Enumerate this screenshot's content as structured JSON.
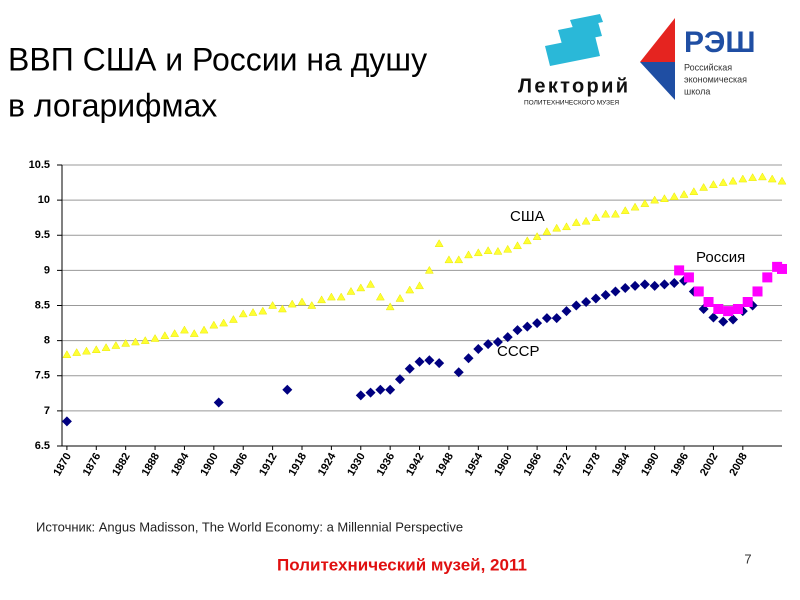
{
  "header": {
    "title_lines": [
      "ВВП США и России на душу",
      "в логарифмах"
    ]
  },
  "logos": {
    "lektoriy": {
      "name": "Лекторий",
      "sub": "ПОЛИТЕХНИЧЕСКОГО МУЗЕЯ"
    },
    "nes": {
      "name": "РЭШ",
      "lines": [
        "Российская",
        "экономическая",
        "школа"
      ]
    }
  },
  "chart_data": {
    "type": "scatter",
    "xlim": [
      1869,
      2016
    ],
    "xticks": [
      1870,
      1876,
      1882,
      1888,
      1894,
      1900,
      1906,
      1912,
      1918,
      1924,
      1930,
      1936,
      1942,
      1948,
      1954,
      1960,
      1966,
      1972,
      1978,
      1984,
      1990,
      1996,
      2002,
      2008
    ],
    "ylim": [
      6.5,
      10.5
    ],
    "yticks": [
      6.5,
      7,
      7.5,
      8,
      8.5,
      9,
      9.5,
      10,
      10.5
    ],
    "grid": true,
    "series": [
      {
        "name": "США",
        "color": "#ffff33",
        "marker": "triangle",
        "x": [
          1870,
          1872,
          1874,
          1876,
          1878,
          1880,
          1882,
          1884,
          1886,
          1888,
          1890,
          1892,
          1894,
          1896,
          1898,
          1900,
          1902,
          1904,
          1906,
          1908,
          1910,
          1912,
          1914,
          1916,
          1918,
          1920,
          1922,
          1924,
          1926,
          1928,
          1930,
          1932,
          1934,
          1936,
          1938,
          1940,
          1942,
          1944,
          1946,
          1948,
          1950,
          1952,
          1954,
          1956,
          1958,
          1960,
          1962,
          1964,
          1966,
          1968,
          1970,
          1972,
          1974,
          1976,
          1978,
          1980,
          1982,
          1984,
          1986,
          1988,
          1990,
          1992,
          1994,
          1996,
          1998,
          2000,
          2002,
          2004,
          2006,
          2008,
          2010,
          2012,
          2014,
          2016
        ],
        "values": [
          7.8,
          7.83,
          7.85,
          7.87,
          7.9,
          7.93,
          7.96,
          7.98,
          8.0,
          8.03,
          8.07,
          8.1,
          8.15,
          8.1,
          8.15,
          8.22,
          8.25,
          8.3,
          8.38,
          8.4,
          8.42,
          8.5,
          8.45,
          8.52,
          8.55,
          8.5,
          8.58,
          8.62,
          8.62,
          8.7,
          8.75,
          8.8,
          8.62,
          8.48,
          8.6,
          8.72,
          8.78,
          9.0,
          9.38,
          9.15,
          9.15,
          9.22,
          9.25,
          9.28,
          9.27,
          9.3,
          9.35,
          9.42,
          9.48,
          9.55,
          9.6,
          9.62,
          9.68,
          9.7,
          9.75,
          9.8,
          9.8,
          9.85,
          9.9,
          9.95,
          10.0,
          10.02,
          10.05,
          10.08,
          10.12,
          10.18,
          10.22,
          10.25,
          10.27,
          10.3,
          10.32,
          10.33,
          10.3,
          10.27
        ]
      },
      {
        "name": "СССР",
        "color": "#000080",
        "marker": "diamond",
        "x": [
          1870,
          1901,
          1915,
          1930,
          1932,
          1934,
          1936,
          1938,
          1940,
          1942,
          1944,
          1946,
          1950,
          1952,
          1954,
          1956,
          1958,
          1960,
          1962,
          1964,
          1966,
          1968,
          1970,
          1972,
          1974,
          1976,
          1978,
          1980,
          1982,
          1984,
          1986,
          1988,
          1990,
          1992,
          1994,
          1996,
          1998,
          2000,
          2002,
          2004,
          2006,
          2008,
          2010
        ],
        "values": [
          6.85,
          7.12,
          7.3,
          7.22,
          7.26,
          7.3,
          7.3,
          7.45,
          7.6,
          7.7,
          7.72,
          7.68,
          7.55,
          7.75,
          7.88,
          7.95,
          7.98,
          8.05,
          8.15,
          8.2,
          8.25,
          8.32,
          8.32,
          8.42,
          8.5,
          8.55,
          8.6,
          8.65,
          8.7,
          8.75,
          8.78,
          8.8,
          8.78,
          8.8,
          8.82,
          8.85,
          8.7,
          8.45,
          8.33,
          8.27,
          8.3,
          8.42,
          8.5
        ]
      },
      {
        "name": "Россия",
        "color": "#ff00ff",
        "marker": "square",
        "x": [
          1995,
          1997,
          1999,
          2001,
          2003,
          2005,
          2007,
          2009,
          2011,
          2013,
          2015,
          2016
        ],
        "values": [
          9.0,
          8.9,
          8.7,
          8.55,
          8.45,
          8.42,
          8.45,
          8.55,
          8.7,
          8.9,
          9.05,
          9.02
        ]
      }
    ]
  },
  "source": "Источник: Angus Madisson, The World Economy: a Millennial Perspective",
  "footer": "Политехнический музей, 2011",
  "page_number": "7"
}
